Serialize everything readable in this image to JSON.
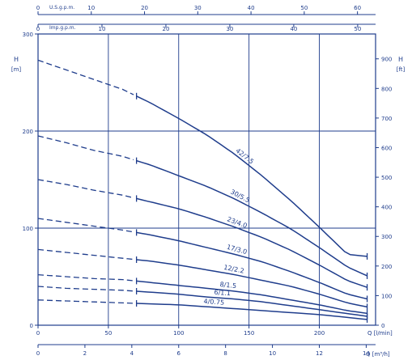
{
  "chart_data": {
    "type": "line",
    "title": "",
    "grid": true,
    "x_axis": {
      "unit_label": "Q [l/min]",
      "range": [
        0,
        240
      ],
      "ticks": [
        0,
        50,
        100,
        150,
        200
      ]
    },
    "x_axis_secondary": {
      "unit_label": "Q [m³/h]",
      "range": [
        0,
        14.4
      ],
      "ticks": [
        0,
        2,
        4,
        6,
        8,
        10,
        12,
        14
      ]
    },
    "x_axis_top_us": {
      "label": "U.S.g.p.m.",
      "range": [
        0,
        63.4
      ],
      "ticks": [
        0,
        10,
        20,
        30,
        40,
        50,
        60
      ]
    },
    "x_axis_top_imp": {
      "label": "Imp.g.p.m.",
      "range": [
        0,
        52.8
      ],
      "ticks": [
        0,
        10,
        20,
        30,
        40,
        50
      ]
    },
    "y_axis_left": {
      "title": "H",
      "unit": "[m]",
      "range": [
        0,
        300
      ],
      "ticks": [
        0,
        100,
        200,
        300
      ]
    },
    "y_axis_right": {
      "title": "H",
      "unit": "[ft]",
      "range": [
        0,
        984
      ],
      "ticks": [
        0,
        100,
        200,
        300,
        400,
        500,
        600,
        700,
        800,
        900
      ]
    },
    "series": [
      {
        "name": "42/7.5",
        "x": [
          0,
          20,
          40,
          60,
          80,
          100,
          120,
          140,
          160,
          180,
          200,
          220,
          240
        ],
        "y": [
          273,
          263,
          253,
          243,
          229,
          213,
          196,
          176,
          153,
          128,
          101,
          73,
          70
        ]
      },
      {
        "name": "30/5.5",
        "x": [
          0,
          20,
          40,
          60,
          80,
          100,
          120,
          140,
          160,
          180,
          200,
          220,
          240
        ],
        "y": [
          195,
          188,
          180,
          174,
          165,
          154,
          143,
          130,
          115,
          99,
          80,
          60,
          47
        ]
      },
      {
        "name": "23/4.0",
        "x": [
          0,
          20,
          40,
          60,
          80,
          100,
          120,
          140,
          160,
          180,
          200,
          220,
          240
        ],
        "y": [
          150,
          145,
          139,
          134,
          127,
          120,
          111,
          101,
          90,
          77,
          62,
          46,
          36
        ]
      },
      {
        "name": "17/3.0",
        "x": [
          0,
          20,
          40,
          60,
          80,
          100,
          120,
          140,
          160,
          180,
          200,
          220,
          240
        ],
        "y": [
          110,
          106,
          102,
          98,
          93,
          87,
          80,
          73,
          65,
          55,
          44,
          32,
          25
        ]
      },
      {
        "name": "12/2.2",
        "x": [
          0,
          20,
          40,
          60,
          80,
          100,
          120,
          140,
          160,
          180,
          200,
          220,
          240
        ],
        "y": [
          78,
          75,
          72,
          69,
          66,
          62,
          57,
          52,
          46,
          40,
          32,
          23,
          17
        ]
      },
      {
        "name": "8/1.5",
        "x": [
          0,
          20,
          40,
          60,
          80,
          100,
          120,
          140,
          160,
          180,
          200,
          220,
          240
        ],
        "y": [
          52,
          50,
          48,
          47,
          44,
          41,
          38,
          35,
          31,
          26,
          21,
          15,
          11
        ]
      },
      {
        "name": "6/1.1",
        "x": [
          0,
          20,
          40,
          60,
          80,
          100,
          120,
          140,
          160,
          180,
          200,
          220,
          240
        ],
        "y": [
          40,
          38,
          37,
          36,
          34,
          32,
          29,
          27,
          24,
          20,
          16,
          12,
          8
        ]
      },
      {
        "name": "4/0.75",
        "x": [
          0,
          20,
          40,
          60,
          80,
          100,
          120,
          140,
          160,
          180,
          200,
          220,
          240
        ],
        "y": [
          26,
          25,
          24,
          23,
          22,
          21,
          19,
          17,
          15,
          13,
          11,
          8,
          5
        ]
      }
    ]
  }
}
